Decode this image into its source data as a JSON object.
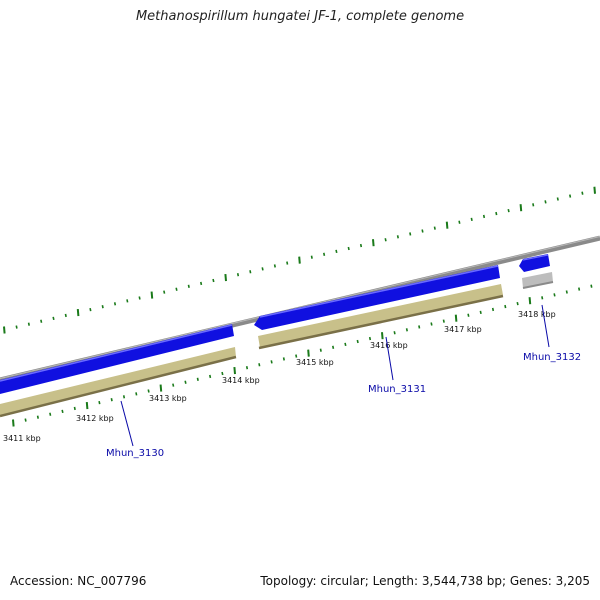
{
  "title": "Methanospirillum hungatei JF-1, complete genome",
  "footer": {
    "accession": "Accession: NC_007796",
    "summary": "Topology: circular; Length: 3,544,738 bp; Genes: 3,205"
  },
  "colors": {
    "backbone": "#8a8a8a",
    "cds_blue": "#1010e0",
    "cds_blue_light": "#6b6bff",
    "gene_khaki": "#c8c08a",
    "gene_khaki_dark": "#7a7048",
    "gene_grey": "#bdbdbd",
    "tick_green": "#1a7a1a",
    "label_blue": "#0a0aa8"
  },
  "scale_labels": [
    "3411 kbp",
    "3412 kbp",
    "3413 kbp",
    "3414 kbp",
    "3415 kbp",
    "3416 kbp",
    "3417 kbp",
    "3418 kbp"
  ],
  "genes": [
    {
      "label": "Mhun_3130"
    },
    {
      "label": "Mhun_3131"
    },
    {
      "label": "Mhun_3132"
    }
  ]
}
